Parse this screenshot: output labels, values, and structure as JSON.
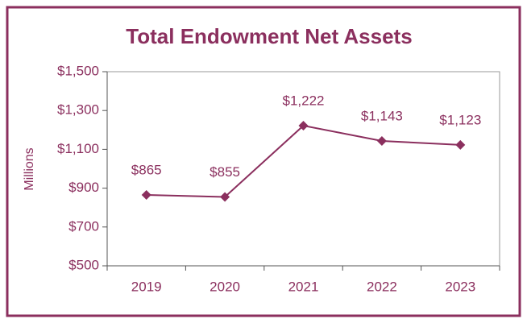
{
  "chart_data": {
    "type": "line",
    "title": "Total Endowment Net Assets",
    "y_label": "Millions",
    "categories": [
      "2019",
      "2020",
      "2021",
      "2022",
      "2023"
    ],
    "values": [
      865,
      855,
      1222,
      1143,
      1123
    ],
    "value_labels": [
      "$865",
      "$855",
      "$1,222",
      "$1,143",
      "$1,123"
    ],
    "color": "#8b2f5e",
    "ylim": [
      500,
      1500
    ],
    "yticks": [
      {
        "value": 500,
        "label": "$500"
      },
      {
        "value": 700,
        "label": "$700"
      },
      {
        "value": 900,
        "label": "$900"
      },
      {
        "value": 1100,
        "label": "$1,100"
      },
      {
        "value": 1300,
        "label": "$1,300"
      },
      {
        "value": 1500,
        "label": "$1,500"
      }
    ]
  }
}
